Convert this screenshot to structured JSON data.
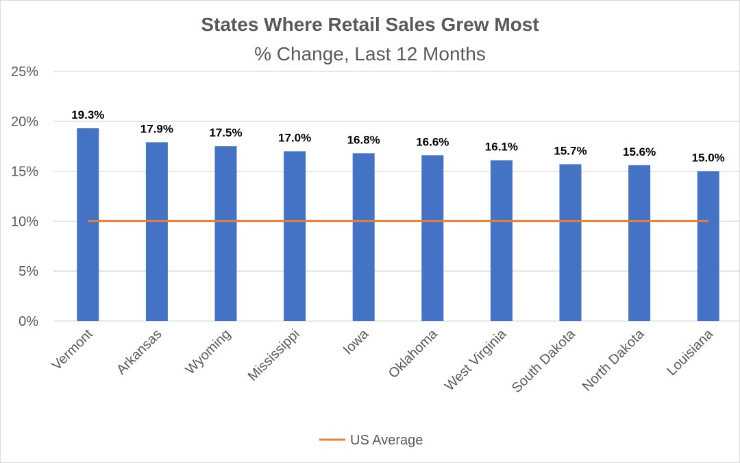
{
  "chart_data": {
    "type": "bar",
    "title": "States Where Retail Sales Grew Most",
    "subtitle": "% Change, Last 12 Months",
    "xlabel": "",
    "ylabel": "",
    "ylim": [
      0,
      25
    ],
    "yticks": [
      0,
      5,
      10,
      15,
      20,
      25
    ],
    "ytick_labels": [
      "0%",
      "5%",
      "10%",
      "15%",
      "20%",
      "25%"
    ],
    "grid": true,
    "categories": [
      "Vermont",
      "Arkansas",
      "Wyoming",
      "Mississippi",
      "Iowa",
      "Oklahoma",
      "West Virginia",
      "South Dakota",
      "North Dakota",
      "Louisiana"
    ],
    "series": [
      {
        "name": "% Change",
        "type": "bar",
        "color": "#4472C4",
        "values": [
          19.3,
          17.9,
          17.5,
          17.0,
          16.8,
          16.6,
          16.1,
          15.7,
          15.6,
          15.0
        ],
        "data_labels": [
          "19.3%",
          "17.9%",
          "17.5%",
          "17.0%",
          "16.8%",
          "16.6%",
          "16.1%",
          "15.7%",
          "15.6%",
          "15.0%"
        ]
      },
      {
        "name": "US Average",
        "type": "line",
        "color": "#ED7D31",
        "values": [
          10,
          10,
          10,
          10,
          10,
          10,
          10,
          10,
          10,
          10
        ]
      }
    ],
    "legend": {
      "position": "bottom",
      "entries": [
        "US Average"
      ]
    }
  }
}
